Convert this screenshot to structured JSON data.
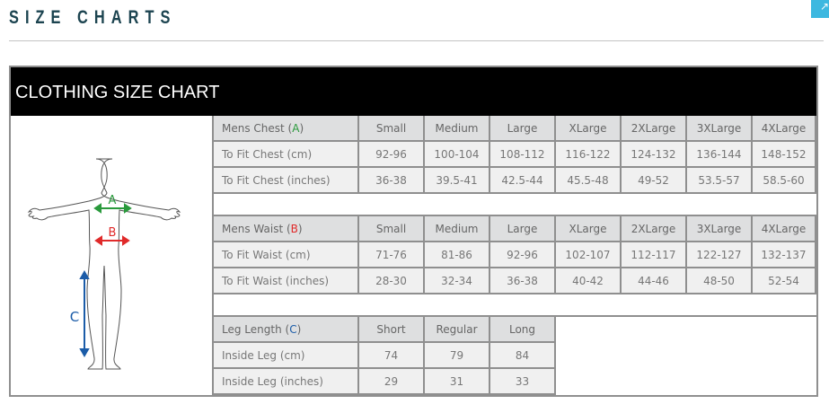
{
  "page_title": "SIZE CHARTS",
  "corner_button_icon": "arrow-up-icon",
  "chart_title": "CLOTHING SIZE CHART",
  "figure": {
    "label_a": "A",
    "label_b": "B",
    "label_c": "C",
    "colors": {
      "A": "#2a9a3c",
      "B": "#e02a2a",
      "C": "#1b5ca8"
    }
  },
  "sections": [
    {
      "header": {
        "prefix": "Mens Chest (",
        "letter": "A",
        "suffix": ")"
      },
      "columns": [
        "Small",
        "Medium",
        "Large",
        "XLarge",
        "2XLarge",
        "3XLarge",
        "4XLarge"
      ],
      "rows": [
        {
          "label": "To Fit Chest (cm)",
          "values": [
            "92-96",
            "100-104",
            "108-112",
            "116-122",
            "124-132",
            "136-144",
            "148-152"
          ]
        },
        {
          "label": "To Fit Chest (inches)",
          "values": [
            "36-38",
            "39.5-41",
            "42.5-44",
            "45.5-48",
            "49-52",
            "53.5-57",
            "58.5-60"
          ]
        }
      ]
    },
    {
      "header": {
        "prefix": "Mens Waist (",
        "letter": "B",
        "suffix": ")"
      },
      "columns": [
        "Small",
        "Medium",
        "Large",
        "XLarge",
        "2XLarge",
        "3XLarge",
        "4XLarge"
      ],
      "rows": [
        {
          "label": "To Fit Waist (cm)",
          "values": [
            "71-76",
            "81-86",
            "92-96",
            "102-107",
            "112-117",
            "122-127",
            "132-137"
          ]
        },
        {
          "label": "To Fit Waist (inches)",
          "values": [
            "28-30",
            "32-34",
            "36-38",
            "40-42",
            "44-46",
            "48-50",
            "52-54"
          ]
        }
      ]
    },
    {
      "header": {
        "prefix": "Leg Length (",
        "letter": "C",
        "suffix": ")"
      },
      "columns": [
        "Short",
        "Regular",
        "Long"
      ],
      "rows": [
        {
          "label": "Inside Leg (cm)",
          "values": [
            "74",
            "79",
            "84"
          ]
        },
        {
          "label": "Inside Leg (inches)",
          "values": [
            "29",
            "31",
            "33"
          ]
        }
      ]
    }
  ]
}
